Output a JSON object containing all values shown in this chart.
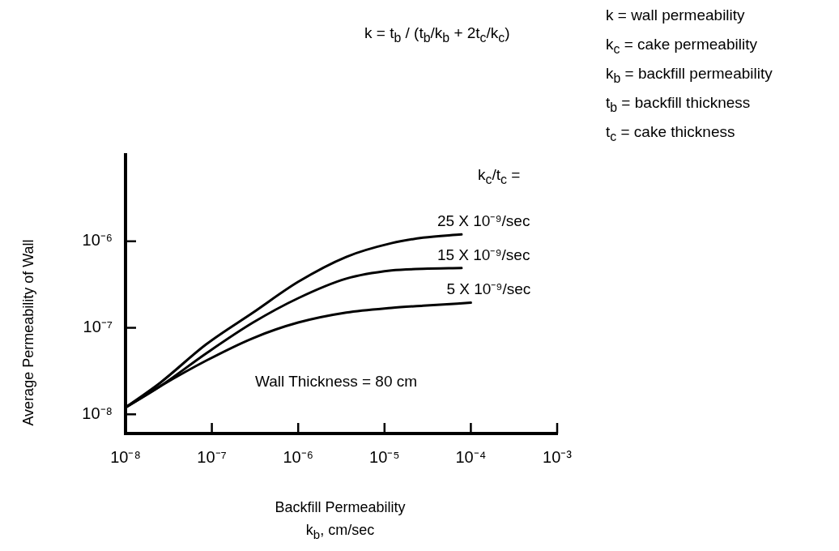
{
  "chart_data": {
    "type": "line",
    "xlabel": "Backfill Permeability k$_{b}$, cm/sec",
    "ylabel": "Average Permeability of Wall",
    "legend_title": "k$_{c}$/t$_{c}$ =",
    "log": "xy",
    "xlim": [
      1e-08,
      0.001
    ],
    "ylim": [
      6e-09,
      1e-05
    ],
    "xticks": [
      {
        "value": 1e-08,
        "label": "10⁻⁸"
      },
      {
        "value": 1e-07,
        "label": "10⁻⁷"
      },
      {
        "value": 1e-06,
        "label": "10⁻⁶"
      },
      {
        "value": 1e-05,
        "label": "10⁻⁵"
      },
      {
        "value": 0.0001,
        "label": "10⁻⁴"
      },
      {
        "value": 0.001,
        "label": "10⁻³"
      }
    ],
    "yticks": [
      {
        "value": 1e-08,
        "label": "10⁻⁸"
      },
      {
        "value": 1e-07,
        "label": "10⁻⁷"
      },
      {
        "value": 1e-06,
        "label": "10⁻⁶"
      }
    ],
    "grid": false,
    "legend": false,
    "marker": "none",
    "line_style": "solid",
    "series": [
      {
        "name": "25 X 10⁻⁹/sec",
        "color": "#000000",
        "x": [
          1e-08,
          2.5e-08,
          8.7e-08,
          3e-07,
          1e-06,
          3.6e-06,
          1.2e-05,
          2.8e-05,
          7.8e-05
        ],
        "values": [
          1.2e-08,
          2.3e-08,
          6.5e-08,
          1.5e-07,
          3.4e-07,
          6.6e-07,
          9.5e-07,
          1.1e-06,
          1.2e-06
        ]
      },
      {
        "name": "15 X 10⁻⁹/sec",
        "color": "#000000",
        "x": [
          1e-08,
          2.5e-08,
          8.7e-08,
          3e-07,
          1e-06,
          3.6e-06,
          1.2e-05,
          2.8e-05,
          7.8e-05
        ],
        "values": [
          1.2e-08,
          2.1e-08,
          5.1e-08,
          1.15e-07,
          2.2e-07,
          3.7e-07,
          4.6e-07,
          4.8e-07,
          4.9e-07
        ]
      },
      {
        "name": "5 X 10⁻⁹/sec",
        "color": "#000000",
        "x": [
          1e-08,
          2.5e-08,
          8.7e-08,
          3e-07,
          1e-06,
          3.6e-06,
          1.2e-05,
          2.8e-05,
          0.0001
        ],
        "values": [
          1.2e-08,
          2.1e-08,
          4.2e-08,
          7.6e-08,
          1.15e-07,
          1.5e-07,
          1.7e-07,
          1.8e-07,
          1.95e-07
        ]
      }
    ],
    "annotations": [
      "k = t$_{b}$ / (t$_{b}$/k$_{b}$ + 2t$_{c}$/k$_{c}$)",
      "k = wall permeability",
      "k$_{c}$ = cake permeability",
      "k$_{b}$ = backfill permeability",
      "t$_{b}$ = backfill thickness",
      "t$_{c}$ = cake thickness",
      "Wall Thickness = 80 cm"
    ]
  }
}
